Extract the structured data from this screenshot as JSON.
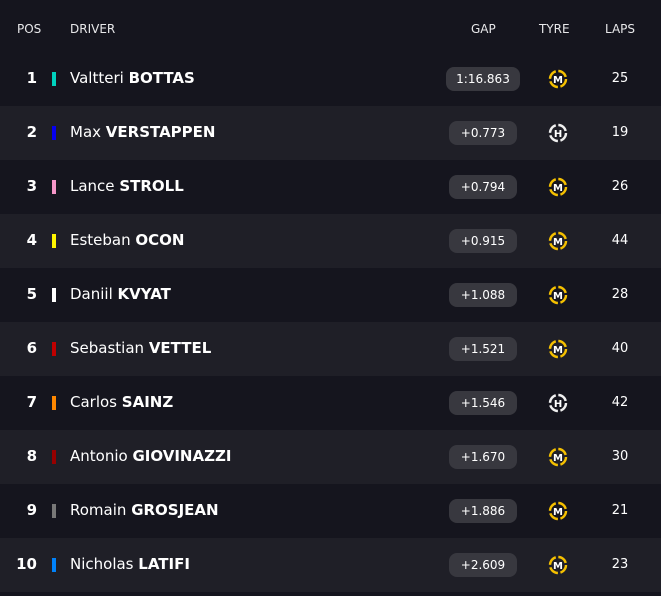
{
  "header": {
    "pos": "POS",
    "driver": "DRIVER",
    "gap": "GAP",
    "tyre": "TYRE",
    "laps": "LAPS"
  },
  "table": {
    "rows": [
      {
        "pos": 1,
        "first": "Valtteri",
        "last": "BOTTAS",
        "color": "#00d2be",
        "gap": "1:16.863",
        "tyre": "M",
        "laps": 25
      },
      {
        "pos": 2,
        "first": "Max",
        "last": "VERSTAPPEN",
        "color": "#0600ef",
        "gap": "+0.773",
        "tyre": "H",
        "laps": 19
      },
      {
        "pos": 3,
        "first": "Lance",
        "last": "STROLL",
        "color": "#f596c8",
        "gap": "+0.794",
        "tyre": "M",
        "laps": 26
      },
      {
        "pos": 4,
        "first": "Esteban",
        "last": "OCON",
        "color": "#fff500",
        "gap": "+0.915",
        "tyre": "M",
        "laps": 44
      },
      {
        "pos": 5,
        "first": "Daniil",
        "last": "KVYAT",
        "color": "#ffffff",
        "gap": "+1.088",
        "tyre": "M",
        "laps": 28
      },
      {
        "pos": 6,
        "first": "Sebastian",
        "last": "VETTEL",
        "color": "#c00000",
        "gap": "+1.521",
        "tyre": "M",
        "laps": 40
      },
      {
        "pos": 7,
        "first": "Carlos",
        "last": "SAINZ",
        "color": "#ff8700",
        "gap": "+1.546",
        "tyre": "H",
        "laps": 42
      },
      {
        "pos": 8,
        "first": "Antonio",
        "last": "GIOVINAZZI",
        "color": "#960000",
        "gap": "+1.670",
        "tyre": "M",
        "laps": 30
      },
      {
        "pos": 9,
        "first": "Romain",
        "last": "GROSJEAN",
        "color": "#787878",
        "gap": "+1.886",
        "tyre": "M",
        "laps": 21
      },
      {
        "pos": 10,
        "first": "Nicholas",
        "last": "LATIFI",
        "color": "#0082fa",
        "gap": "+2.609",
        "tyre": "M",
        "laps": 23
      }
    ]
  }
}
